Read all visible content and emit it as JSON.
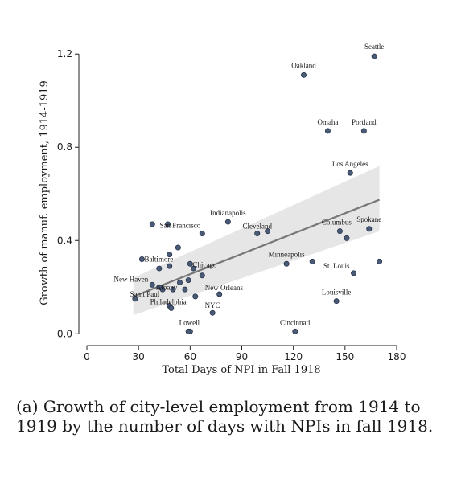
{
  "caption": "(a) Growth of city-level employment from 1914 to 1919 by the number of days with NPIs in fall 1918.",
  "chart_data": {
    "type": "scatter",
    "title": "",
    "xlabel": "Total Days of NPI in Fall 1918",
    "ylabel": "Growth of manuf. employment, 1914-1919",
    "xlim": [
      0,
      180
    ],
    "ylim": [
      -0.03,
      1.28
    ],
    "xticks": [
      0,
      30,
      60,
      90,
      120,
      150,
      180
    ],
    "yticks": [
      0.0,
      0.4,
      0.8,
      1.2
    ],
    "ytick_labels": [
      "0.0",
      "0.4",
      "0.8",
      "1.2"
    ],
    "grid": false,
    "legend": "none",
    "colors": {
      "point_fill": "#4a5b78",
      "point_stroke": "#26334a",
      "fit_line": "#777777",
      "ci_band": "#e6e6e6",
      "axis": "#222222"
    },
    "fit": {
      "x": [
        27,
        170
      ],
      "y": [
        0.16,
        0.575
      ],
      "ci_lower": [
        0.08,
        0.44
      ],
      "ci_upper": [
        0.24,
        0.72
      ]
    },
    "points": [
      {
        "x": 167,
        "y": 1.19,
        "label": "Seattle"
      },
      {
        "x": 126,
        "y": 1.11,
        "label": "Oakland"
      },
      {
        "x": 140,
        "y": 0.87,
        "label": "Omaha"
      },
      {
        "x": 161,
        "y": 0.87,
        "label": "Portland"
      },
      {
        "x": 153,
        "y": 0.69,
        "label": "Los Angeles"
      },
      {
        "x": 82,
        "y": 0.48,
        "label": "Indianapolis"
      },
      {
        "x": 67,
        "y": 0.43,
        "label": "San Francisco"
      },
      {
        "x": 99,
        "y": 0.43,
        "label": "Cleveland"
      },
      {
        "x": 147,
        "y": 0.44,
        "label": "Columbus"
      },
      {
        "x": 164,
        "y": 0.45,
        "label": "Spokane"
      },
      {
        "x": 32,
        "y": 0.32,
        "label": "Baltimore"
      },
      {
        "x": 60,
        "y": 0.3,
        "label": "Chicago"
      },
      {
        "x": 116,
        "y": 0.3,
        "label": "Minneapolis"
      },
      {
        "x": 155,
        "y": 0.26,
        "label": "St. Louis"
      },
      {
        "x": 38,
        "y": 0.21,
        "label": "New Haven"
      },
      {
        "x": 42,
        "y": 0.2,
        "label": "Albany"
      },
      {
        "x": 28,
        "y": 0.15,
        "label": "Saint Paul"
      },
      {
        "x": 63,
        "y": 0.16,
        "label": "New Orleans"
      },
      {
        "x": 48,
        "y": 0.12,
        "label": "Philadelphia"
      },
      {
        "x": 73,
        "y": 0.09,
        "label": "NYC"
      },
      {
        "x": 145,
        "y": 0.14,
        "label": "Louisville"
      },
      {
        "x": 60,
        "y": 0.01,
        "label": "Lowell"
      },
      {
        "x": 121,
        "y": 0.01,
        "label": "Cincinnati"
      },
      {
        "x": 38,
        "y": 0.47,
        "label": ""
      },
      {
        "x": 47,
        "y": 0.47,
        "label": ""
      },
      {
        "x": 53,
        "y": 0.37,
        "label": ""
      },
      {
        "x": 48,
        "y": 0.34,
        "label": ""
      },
      {
        "x": 105,
        "y": 0.44,
        "label": ""
      },
      {
        "x": 131,
        "y": 0.31,
        "label": ""
      },
      {
        "x": 151,
        "y": 0.41,
        "label": ""
      },
      {
        "x": 170,
        "y": 0.31,
        "label": ""
      },
      {
        "x": 42,
        "y": 0.28,
        "label": ""
      },
      {
        "x": 48,
        "y": 0.29,
        "label": ""
      },
      {
        "x": 62,
        "y": 0.28,
        "label": ""
      },
      {
        "x": 67,
        "y": 0.25,
        "label": ""
      },
      {
        "x": 59,
        "y": 0.23,
        "label": ""
      },
      {
        "x": 54,
        "y": 0.22,
        "label": ""
      },
      {
        "x": 44,
        "y": 0.19,
        "label": ""
      },
      {
        "x": 50,
        "y": 0.19,
        "label": ""
      },
      {
        "x": 57,
        "y": 0.19,
        "label": ""
      },
      {
        "x": 77,
        "y": 0.17,
        "label": ""
      },
      {
        "x": 49,
        "y": 0.11,
        "label": ""
      },
      {
        "x": 59,
        "y": 0.01,
        "label": ""
      }
    ]
  }
}
